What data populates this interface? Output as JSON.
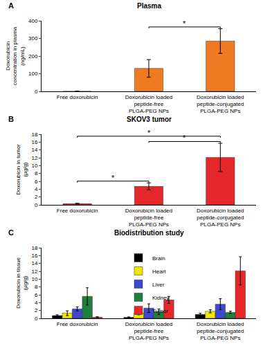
{
  "chart_data": [
    {
      "type": "bar",
      "panel_label": "A",
      "title": "Plasma",
      "ylabel": "Doxorubicin concentration in plasma (ng/mL)",
      "categories": [
        "Free doxorubicin",
        "Doxorubicin loaded peptide-free PLGA-PEG NPs",
        "Doxorubicin loaded peptide-conjugated PLGA-PEG NPs"
      ],
      "values": [
        0,
        130,
        285
      ],
      "errors": [
        0,
        50,
        70
      ],
      "color": "#f07a22",
      "ylim": [
        0,
        400
      ],
      "yticks": [
        0,
        100,
        200,
        300,
        400
      ],
      "grid": false,
      "significance": [
        {
          "between": [
            1,
            2
          ],
          "label": "*"
        }
      ]
    },
    {
      "type": "bar",
      "panel_label": "B",
      "title": "SKOV3 tumor",
      "ylabel": "Doxorubicin in tumor (µg/g)",
      "categories": [
        "Free doxorubicin",
        "Doxorubicin loaded peptide-free PLGA-PEG NPs",
        "Doxorubicin loaded peptide-conjugated PLGA-PEG NPs"
      ],
      "values": [
        0.3,
        4.7,
        12.1
      ],
      "errors": [
        0.1,
        0.9,
        3.6
      ],
      "color": "#e5262b",
      "ylim": [
        0,
        18
      ],
      "yticks": [
        0,
        2,
        4,
        6,
        8,
        10,
        12,
        14,
        16,
        18
      ],
      "grid": false,
      "significance": [
        {
          "between": [
            0,
            1
          ],
          "label": "*"
        },
        {
          "between": [
            1,
            2
          ],
          "label": "*"
        },
        {
          "between": [
            0,
            2
          ],
          "label": "*"
        }
      ]
    },
    {
      "type": "bar",
      "panel_label": "C",
      "title": "Biodistribution study",
      "ylabel": "Doxorubicin in tissue (µg/g)",
      "categories": [
        "Free doxorubicin",
        "Doxorubicin loaded peptide-free PLGA-PEG NPs",
        "Doxorubicin loaded peptide-conjugated PLGA-PEG NPs"
      ],
      "series": [
        {
          "name": "Brain",
          "color": "#000000",
          "values": [
            0.7,
            0.25,
            1.0
          ],
          "errors": [
            0.2,
            0.1,
            0.3
          ]
        },
        {
          "name": "Heart",
          "color": "#f2e600",
          "values": [
            1.3,
            1.3,
            1.8
          ],
          "errors": [
            0.6,
            0.4,
            0.4
          ]
        },
        {
          "name": "Liver",
          "color": "#3f48cc",
          "values": [
            2.4,
            2.6,
            3.6
          ],
          "errors": [
            0.5,
            1.1,
            1.4
          ]
        },
        {
          "name": "Kidney",
          "color": "#1f7f3f",
          "values": [
            5.6,
            1.7,
            1.5
          ],
          "errors": [
            2.2,
            0.7,
            0.3
          ]
        },
        {
          "name": "Tumor",
          "color": "#e5262b",
          "values": [
            0.3,
            4.7,
            12.1
          ],
          "errors": [
            0.1,
            0.9,
            3.6
          ]
        }
      ],
      "ylim": [
        0,
        18
      ],
      "yticks": [
        0,
        2,
        4,
        6,
        8,
        10,
        12,
        14,
        16,
        18
      ],
      "grid": false,
      "legend": "upper center"
    }
  ]
}
